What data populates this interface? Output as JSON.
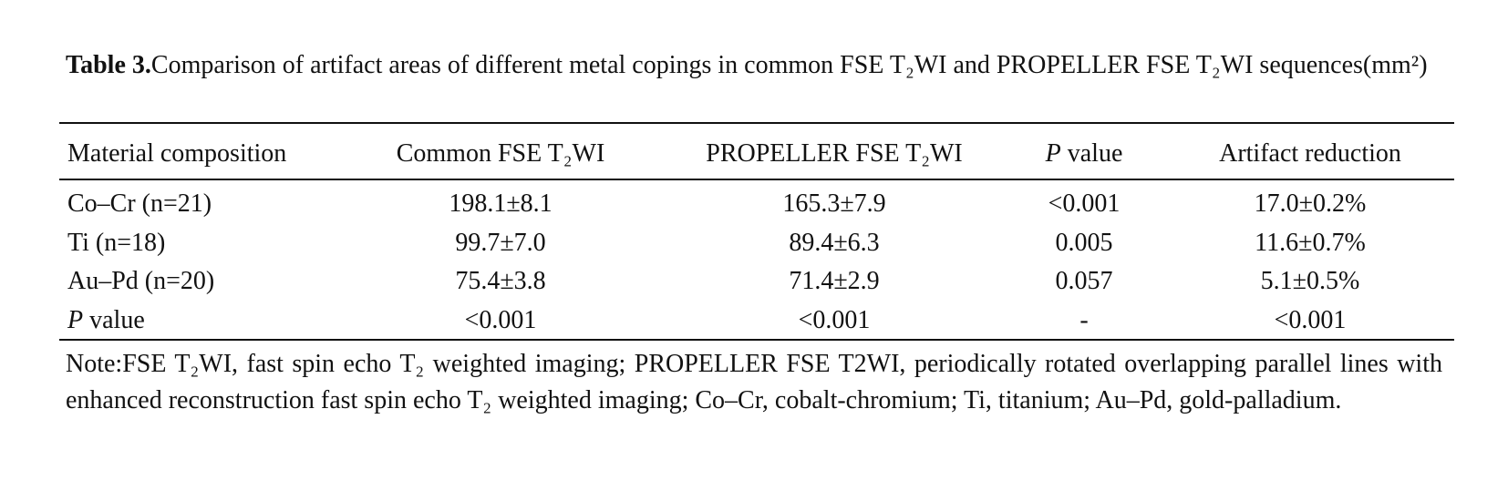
{
  "caption": {
    "label": "Table 3.",
    "text": "Comparison of artifact areas of different metal copings in common FSE T₂WI and PROPELLER FSE T₂WI sequences(mm²)"
  },
  "table": {
    "header": [
      "Material composition",
      "Common FSE T₂WI",
      "PROPELLER FSE T₂WI",
      [
        "P",
        " value"
      ],
      "Artifact reduction"
    ],
    "rows": [
      [
        "Co–Cr (n=21)",
        "198.1±8.1",
        "165.3±7.9",
        "<0.001",
        "17.0±0.2%"
      ],
      [
        "Ti (n=18)",
        "99.7±7.0",
        "89.4±6.3",
        "0.005",
        "11.6±0.7%"
      ],
      [
        "Au–Pd (n=20)",
        "75.4±3.8",
        "71.4±2.9",
        "0.057",
        "5.1±0.5%"
      ],
      [
        [
          "P",
          " value"
        ],
        "<0.001",
        "<0.001",
        "-",
        "<0.001"
      ]
    ]
  },
  "note": "Note:FSE T₂WI, fast spin echo T₂ weighted imaging; PROPELLER FSE T2WI, periodically rotated overlapping parallel lines with enhanced reconstruction fast spin echo T₂ weighted imaging; Co–Cr, cobalt-chromium; Ti, titanium; Au–Pd, gold-palladium."
}
